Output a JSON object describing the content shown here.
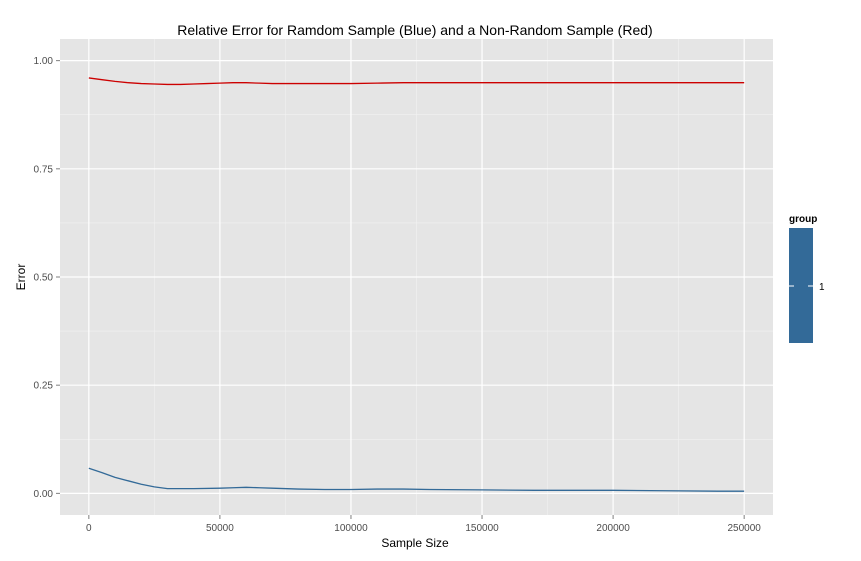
{
  "chart_data": {
    "type": "line",
    "title": "Relative Error for Ramdom Sample (Blue) and a Non-Random Sample (Red)",
    "xlabel": "Sample Size",
    "ylabel": "Error",
    "xlim": [
      -11000,
      261000
    ],
    "ylim": [
      -0.05,
      1.05
    ],
    "x_ticks": [
      0,
      50000,
      100000,
      150000,
      200000,
      250000
    ],
    "x_tick_labels": [
      "0",
      "50000",
      "100000",
      "150000",
      "200000",
      "250000"
    ],
    "y_ticks": [
      0.0,
      0.25,
      0.5,
      0.75,
      1.0
    ],
    "y_tick_labels": [
      "0.00",
      "0.25",
      "0.50",
      "0.75",
      "1.00"
    ],
    "grid": true,
    "background": "#e5e5e5",
    "series": [
      {
        "color": "#cc0000",
        "x": [
          0,
          5000,
          10000,
          15000,
          20000,
          25000,
          30000,
          35000,
          40000,
          45000,
          50000,
          55000,
          60000,
          65000,
          70000,
          80000,
          90000,
          100000,
          110000,
          120000,
          140000,
          160000,
          180000,
          200000,
          220000,
          240000,
          250000
        ],
        "y": [
          0.96,
          0.956,
          0.952,
          0.949,
          0.947,
          0.946,
          0.945,
          0.945,
          0.946,
          0.947,
          0.948,
          0.949,
          0.949,
          0.948,
          0.947,
          0.947,
          0.947,
          0.947,
          0.948,
          0.949,
          0.949,
          0.949,
          0.949,
          0.949,
          0.949,
          0.949,
          0.949
        ]
      },
      {
        "color": "#336a98",
        "x": [
          0,
          5000,
          10000,
          15000,
          20000,
          25000,
          30000,
          35000,
          40000,
          50000,
          55000,
          60000,
          65000,
          70000,
          80000,
          90000,
          100000,
          110000,
          120000,
          130000,
          150000,
          170000,
          200000,
          220000,
          240000,
          250000
        ],
        "y": [
          0.058,
          0.048,
          0.037,
          0.029,
          0.021,
          0.015,
          0.011,
          0.011,
          0.011,
          0.012,
          0.013,
          0.014,
          0.013,
          0.012,
          0.01,
          0.009,
          0.009,
          0.01,
          0.01,
          0.009,
          0.008,
          0.007,
          0.007,
          0.006,
          0.005,
          0.005
        ]
      }
    ],
    "legend": {
      "title": "group",
      "position": "right",
      "color": "#336a98",
      "labels": [
        "1"
      ]
    }
  }
}
